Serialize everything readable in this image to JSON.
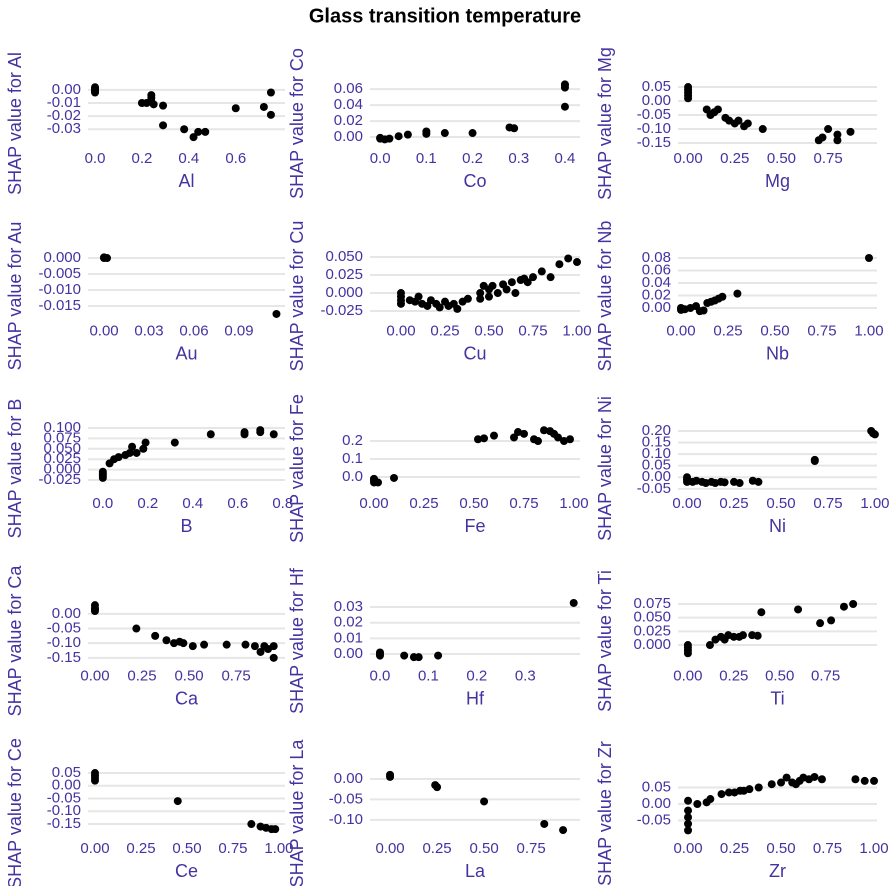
{
  "title": "Glass transition temperature",
  "chart_data": [
    {
      "type": "scatter",
      "xlabel": "Al",
      "ylabel": "SHAP value for Al",
      "color": "#000000",
      "grid": true,
      "x": [
        0,
        0,
        0,
        0,
        0,
        0.2,
        0.22,
        0.24,
        0.24,
        0.24,
        0.25,
        0.29,
        0.29,
        0.38,
        0.42,
        0.44,
        0.47,
        0.6,
        0.72,
        0.75,
        0.75
      ],
      "y": [
        0.002,
        0.001,
        0,
        -0.001,
        -0.002,
        -0.01,
        -0.01,
        -0.009,
        -0.006,
        -0.004,
        -0.011,
        -0.012,
        -0.027,
        -0.03,
        -0.036,
        -0.032,
        -0.032,
        -0.014,
        -0.013,
        -0.002,
        -0.019
      ],
      "xlim": [
        -0.03,
        0.81
      ],
      "ylim": [
        -0.042,
        0.006
      ],
      "xticks": [
        {
          "value": 0,
          "label": "0.0"
        },
        0.2,
        0.4,
        0.6
      ],
      "yticks": [
        {
          "value": 0,
          "label": "0.00"
        },
        -0.01,
        -0.02,
        -0.03
      ]
    },
    {
      "type": "scatter",
      "xlabel": "Co",
      "ylabel": "SHAP value for Co",
      "color": "#000000",
      "grid": true,
      "x": [
        0,
        0,
        0.01,
        0.02,
        0.04,
        0.06,
        0.1,
        0.1,
        0.14,
        0.2,
        0.28,
        0.29,
        0.4,
        0.4,
        0.4,
        0.4
      ],
      "y": [
        -0.002,
        -0.001,
        -0.003,
        -0.002,
        0.001,
        0.003,
        0.004,
        0.007,
        0.005,
        0.005,
        0.012,
        0.011,
        0.038,
        0.062,
        0.065,
        0.066
      ],
      "xlim": [
        -0.022,
        0.4326
      ],
      "ylim": [
        -0.01,
        0.069
      ],
      "xticks": [
        {
          "value": 0,
          "label": "0.0"
        },
        0.1,
        0.2,
        0.3,
        0.4
      ],
      "yticks": [
        {
          "value": 0,
          "label": "0.00"
        },
        0.02,
        0.04,
        0.06
      ]
    },
    {
      "type": "scatter",
      "xlabel": "Mg",
      "ylabel": "SHAP value for Mg",
      "color": "#000000",
      "grid": true,
      "x": [
        0,
        0,
        0,
        0,
        0,
        0.1,
        0.12,
        0.14,
        0.16,
        0.2,
        0.22,
        0.25,
        0.27,
        0.3,
        0.32,
        0.4,
        0.7,
        0.72,
        0.75,
        0.8,
        0.8,
        0.87
      ],
      "y": [
        0.05,
        0.04,
        0.03,
        0.02,
        0.01,
        -0.03,
        -0.05,
        -0.04,
        -0.03,
        -0.06,
        -0.07,
        -0.08,
        -0.07,
        -0.09,
        -0.08,
        -0.1,
        -0.14,
        -0.13,
        -0.1,
        -0.12,
        -0.14,
        -0.11
      ],
      "xlim": [
        -0.054,
        1.012
      ],
      "ylim": [
        -0.157,
        0.068
      ],
      "xticks": [
        {
          "value": 0,
          "label": "0.00"
        },
        0.25,
        {
          "value": 0.5,
          "label": "0.50"
        },
        0.75
      ],
      "yticks": [
        0.05,
        {
          "value": 0,
          "label": "0.00"
        },
        -0.05,
        {
          "value": -0.1,
          "label": "-0.10"
        },
        -0.15
      ]
    },
    {
      "type": "scatter",
      "xlabel": "Au",
      "ylabel": "SHAP value for Au",
      "color": "#000000",
      "grid": true,
      "x": [
        0,
        0,
        0.002,
        0.115
      ],
      "y": [
        0,
        0.0002,
        0,
        -0.0175
      ],
      "xlim": [
        -0.0107,
        0.1207
      ],
      "ylim": [
        -0.0186,
        0.0011
      ],
      "xticks": [
        {
          "value": 0,
          "label": "0.00"
        },
        0.03,
        0.06,
        0.09
      ],
      "yticks": [
        {
          "value": 0,
          "label": "0.000"
        },
        -0.005,
        {
          "value": -0.01,
          "label": "-0.010"
        },
        -0.015
      ]
    },
    {
      "type": "scatter",
      "xlabel": "Cu",
      "ylabel": "SHAP value for Cu",
      "color": "#000000",
      "grid": true,
      "x": [
        0,
        0,
        0,
        0,
        0.05,
        0.08,
        0.1,
        0.12,
        0.15,
        0.17,
        0.2,
        0.22,
        0.25,
        0.27,
        0.3,
        0.32,
        0.35,
        0.38,
        0.45,
        0.45,
        0.47,
        0.5,
        0.5,
        0.52,
        0.55,
        0.58,
        0.6,
        0.63,
        0.65,
        0.68,
        0.7,
        0.72,
        0.75,
        0.8,
        0.85,
        0.9,
        0.95,
        1.0
      ],
      "y": [
        -0.005,
        -0.01,
        -0.015,
        0,
        -0.01,
        -0.012,
        -0.005,
        -0.015,
        -0.018,
        -0.01,
        -0.015,
        -0.02,
        -0.012,
        -0.018,
        -0.015,
        -0.022,
        -0.012,
        -0.008,
        -0.008,
        0,
        0.01,
        0.005,
        -0.005,
        0.01,
        0,
        0.012,
        0.005,
        0.015,
        0,
        0.018,
        0.02,
        0.015,
        0.022,
        0.03,
        0.022,
        0.04,
        0.048,
        0.043
      ],
      "xlim": [
        -0.176,
        1.017
      ],
      "ylim": [
        -0.034,
        0.0535
      ],
      "xticks": [
        {
          "value": 0,
          "label": "0.00"
        },
        0.25,
        {
          "value": 0.5,
          "label": "0.50"
        },
        0.75,
        {
          "value": 1,
          "label": "1.00"
        }
      ],
      "yticks": [
        {
          "value": 0.05,
          "label": "0.050"
        },
        0.025,
        {
          "value": 0,
          "label": "0.000"
        },
        -0.025
      ]
    },
    {
      "type": "scatter",
      "xlabel": "Nb",
      "ylabel": "SHAP value for Nb",
      "color": "#000000",
      "grid": true,
      "x": [
        0,
        0,
        0.02,
        0.05,
        0.08,
        0.1,
        0.12,
        0.14,
        0.16,
        0.18,
        0.2,
        0.22,
        0.3,
        1.0
      ],
      "y": [
        0,
        -0.003,
        -0.002,
        0,
        0.003,
        -0.005,
        -0.004,
        0.008,
        0.01,
        0.012,
        0.015,
        0.018,
        0.023,
        0.08
      ],
      "xlim": [
        -0.016,
        1.0426
      ],
      "ylim": [
        -0.0152,
        0.0856
      ],
      "xticks": [
        {
          "value": 0,
          "label": "0.00"
        },
        0.25,
        {
          "value": 0.5,
          "label": "0.50"
        },
        0.75,
        {
          "value": 1,
          "label": "1.00"
        }
      ],
      "yticks": [
        0.08,
        0.06,
        0.04,
        0.02,
        {
          "value": 0,
          "label": "0.00"
        }
      ]
    },
    {
      "type": "scatter",
      "xlabel": "B",
      "ylabel": "SHAP value for B",
      "color": "#000000",
      "grid": true,
      "x": [
        0,
        0,
        0,
        0,
        0.03,
        0.05,
        0.07,
        0.1,
        0.12,
        0.13,
        0.15,
        0.18,
        0.19,
        0.32,
        0.48,
        0.63,
        0.63,
        0.7,
        0.7,
        0.76
      ],
      "y": [
        -0.02,
        -0.015,
        -0.01,
        -0.005,
        0.015,
        0.025,
        0.03,
        0.035,
        0.04,
        0.055,
        0.04,
        0.05,
        0.065,
        0.065,
        0.085,
        0.085,
        0.09,
        0.095,
        0.09,
        0.085
      ],
      "xlim": [
        -0.066,
        0.81
      ],
      "ylim": [
        -0.049,
        0.1024
      ],
      "xticks": [
        {
          "value": 0,
          "label": "0.0"
        },
        0.2,
        0.4,
        0.6,
        0.8
      ],
      "yticks": [
        {
          "value": 0.1,
          "label": "0.100"
        },
        0.075,
        {
          "value": 0.05,
          "label": "0.050"
        },
        0.025,
        {
          "value": 0,
          "label": "0.000"
        },
        -0.025
      ]
    },
    {
      "type": "scatter",
      "xlabel": "Fe",
      "ylabel": "SHAP value for Fe",
      "color": "#000000",
      "grid": true,
      "x": [
        0,
        0,
        0,
        0.02,
        0.1,
        0.52,
        0.55,
        0.6,
        0.7,
        0.72,
        0.75,
        0.8,
        0.82,
        0.85,
        0.88,
        0.9,
        0.92,
        0.95,
        0.98
      ],
      "y": [
        -0.02,
        -0.03,
        -0.01,
        -0.03,
        -0.005,
        0.21,
        0.215,
        0.23,
        0.22,
        0.25,
        0.24,
        0.21,
        0.2,
        0.26,
        0.255,
        0.24,
        0.22,
        0.2,
        0.21
      ],
      "xlim": [
        -0.02,
        1.03
      ],
      "ylim": [
        -0.072,
        0.278
      ],
      "xticks": [
        {
          "value": 0,
          "label": "0.00"
        },
        0.25,
        {
          "value": 0.5,
          "label": "0.50"
        },
        0.75,
        {
          "value": 1,
          "label": "1.00"
        }
      ],
      "yticks": [
        0.2,
        0.1,
        {
          "value": 0,
          "label": "0.0"
        }
      ]
    },
    {
      "type": "scatter",
      "xlabel": "Ni",
      "ylabel": "SHAP value for Ni",
      "color": "#000000",
      "grid": true,
      "x": [
        0,
        0,
        0,
        0.03,
        0.05,
        0.08,
        0.1,
        0.13,
        0.15,
        0.18,
        0.2,
        0.25,
        0.28,
        0.35,
        0.38,
        0.68,
        0.68,
        0.98,
        0.99,
        1.0
      ],
      "y": [
        0,
        -0.01,
        -0.02,
        -0.02,
        -0.015,
        -0.02,
        -0.025,
        -0.02,
        -0.025,
        -0.02,
        -0.022,
        -0.02,
        -0.025,
        -0.015,
        -0.02,
        0.07,
        0.075,
        0.2,
        0.19,
        0.185
      ],
      "xlim": [
        -0.048,
        1.011
      ],
      "ylim": [
        -0.055,
        0.217
      ],
      "xticks": [
        {
          "value": 0,
          "label": "0.00"
        },
        0.25,
        {
          "value": 0.5,
          "label": "0.50"
        },
        0.75,
        {
          "value": 1,
          "label": "1.00"
        }
      ],
      "yticks": [
        {
          "value": 0.2,
          "label": "0.20"
        },
        0.15,
        {
          "value": 0.1,
          "label": "0.10"
        },
        0.05,
        {
          "value": 0,
          "label": "0.00"
        },
        -0.05
      ]
    },
    {
      "type": "scatter",
      "xlabel": "Ca",
      "ylabel": "SHAP value for Ca",
      "color": "#000000",
      "grid": true,
      "x": [
        0,
        0,
        0,
        0,
        0.22,
        0.32,
        0.38,
        0.42,
        0.45,
        0.47,
        0.52,
        0.58,
        0.7,
        0.8,
        0.85,
        0.88,
        0.9,
        0.92,
        0.95,
        0.95
      ],
      "y": [
        0.03,
        0.02,
        0.01,
        0.015,
        -0.05,
        -0.075,
        -0.09,
        -0.1,
        -0.095,
        -0.1,
        -0.11,
        -0.105,
        -0.105,
        -0.105,
        -0.11,
        -0.13,
        -0.11,
        -0.12,
        -0.11,
        -0.15
      ],
      "xlim": [
        -0.037,
        1.01
      ],
      "ylim": [
        -0.166,
        0.0493
      ],
      "xticks": [
        {
          "value": 0,
          "label": "0.00"
        },
        0.25,
        {
          "value": 0.5,
          "label": "0.50"
        },
        0.75
      ],
      "yticks": [
        {
          "value": 0,
          "label": "0.00"
        },
        -0.05,
        {
          "value": -0.1,
          "label": "-0.10"
        },
        -0.15
      ]
    },
    {
      "type": "scatter",
      "xlabel": "Hf",
      "ylabel": "SHAP value for Hf",
      "color": "#000000",
      "grid": true,
      "x": [
        0,
        0,
        0,
        0.05,
        0.07,
        0.08,
        0.12,
        0.4
      ],
      "y": [
        0.001,
        0,
        -0.001,
        -0.001,
        -0.002,
        -0.002,
        -0.001,
        0.0326
      ],
      "xlim": [
        -0.0206,
        0.413
      ],
      "ylim": [
        -0.0054,
        0.0348
      ],
      "xticks": [
        {
          "value": 0,
          "label": "0.0"
        },
        0.1,
        0.2,
        0.3
      ],
      "yticks": [
        0.03,
        0.02,
        0.01,
        {
          "value": 0,
          "label": "0.00"
        }
      ]
    },
    {
      "type": "scatter",
      "xlabel": "Ti",
      "ylabel": "SHAP value for Ti",
      "color": "#000000",
      "grid": true,
      "x": [
        0,
        0,
        0,
        0,
        0.12,
        0.15,
        0.18,
        0.2,
        0.22,
        0.25,
        0.28,
        0.3,
        0.35,
        0.38,
        0.4,
        0.6,
        0.72,
        0.78,
        0.85,
        0.9
      ],
      "y": [
        -0.015,
        -0.01,
        -0.005,
        0,
        0,
        0.01,
        0.015,
        0.01,
        0.018,
        0.015,
        0.015,
        0.018,
        0.018,
        0.017,
        0.06,
        0.065,
        0.04,
        0.045,
        0.07,
        0.075
      ],
      "xlim": [
        -0.054,
        1.03
      ],
      "ylim": [
        -0.0319,
        0.0832
      ],
      "xticks": [
        {
          "value": 0,
          "label": "0.00"
        },
        0.25,
        {
          "value": 0.5,
          "label": "0.50"
        },
        0.75
      ],
      "yticks": [
        0.075,
        {
          "value": 0.05,
          "label": "0.050"
        },
        0.025,
        {
          "value": 0,
          "label": "0.000"
        }
      ]
    },
    {
      "type": "scatter",
      "xlabel": "Ce",
      "ylabel": "SHAP value for Ce",
      "color": "#000000",
      "grid": true,
      "x": [
        0,
        0,
        0,
        0,
        0.45,
        0.85,
        0.9,
        0.93,
        0.96,
        0.98
      ],
      "y": [
        0.05,
        0.04,
        0.03,
        0.02,
        -0.06,
        -0.15,
        -0.16,
        -0.165,
        -0.17,
        -0.17
      ],
      "xlim": [
        -0.038,
        1.033
      ],
      "ylim": [
        -0.193,
        0.054
      ],
      "xticks": [
        {
          "value": 0,
          "label": "0.00"
        },
        0.25,
        {
          "value": 0.5,
          "label": "0.50"
        },
        0.75,
        {
          "value": 1,
          "label": "1.00"
        }
      ],
      "yticks": [
        0.05,
        {
          "value": 0,
          "label": "0.00"
        },
        -0.05,
        {
          "value": -0.1,
          "label": "-0.10"
        },
        -0.15
      ]
    },
    {
      "type": "scatter",
      "xlabel": "La",
      "ylabel": "SHAP value for La",
      "color": "#000000",
      "grid": true,
      "x": [
        0,
        0,
        0.24,
        0.25,
        0.5,
        0.82,
        0.92
      ],
      "y": [
        0.01,
        0.005,
        -0.015,
        -0.02,
        -0.055,
        -0.11,
        -0.125
      ],
      "xlim": [
        -0.1066,
        1.01
      ],
      "ylim": [
        -0.137,
        0.017
      ],
      "xticks": [
        {
          "value": 0,
          "label": "0.00"
        },
        0.25,
        {
          "value": 0.5,
          "label": "0.50"
        },
        0.75
      ],
      "yticks": [
        {
          "value": 0,
          "label": "0.00"
        },
        -0.05,
        {
          "value": -0.1,
          "label": "-0.10"
        }
      ]
    },
    {
      "type": "scatter",
      "xlabel": "Zr",
      "ylabel": "SHAP value for Zr",
      "color": "#000000",
      "grid": true,
      "x": [
        0,
        0,
        0,
        0,
        0,
        0.05,
        0.1,
        0.12,
        0.18,
        0.22,
        0.25,
        0.28,
        0.3,
        0.33,
        0.38,
        0.45,
        0.5,
        0.53,
        0.56,
        0.58,
        0.6,
        0.62,
        0.65,
        0.68,
        0.72,
        0.9,
        0.95,
        1.0
      ],
      "y": [
        -0.08,
        -0.06,
        -0.04,
        -0.02,
        0.01,
        0,
        0.005,
        0.015,
        0.03,
        0.035,
        0.035,
        0.04,
        0.04,
        0.045,
        0.05,
        0.06,
        0.065,
        0.08,
        0.065,
        0.06,
        0.07,
        0.08,
        0.075,
        0.082,
        0.075,
        0.075,
        0.07,
        0.07
      ],
      "xlim": [
        -0.054,
        1.016
      ],
      "ylim": [
        -0.094,
        0.097
      ],
      "xticks": [
        {
          "value": 0,
          "label": "0.00"
        },
        0.25,
        {
          "value": 0.5,
          "label": "0.50"
        },
        0.75,
        {
          "value": 1,
          "label": "1.00"
        }
      ],
      "yticks": [
        0.05,
        {
          "value": 0,
          "label": "0.00"
        },
        -0.05
      ]
    }
  ]
}
